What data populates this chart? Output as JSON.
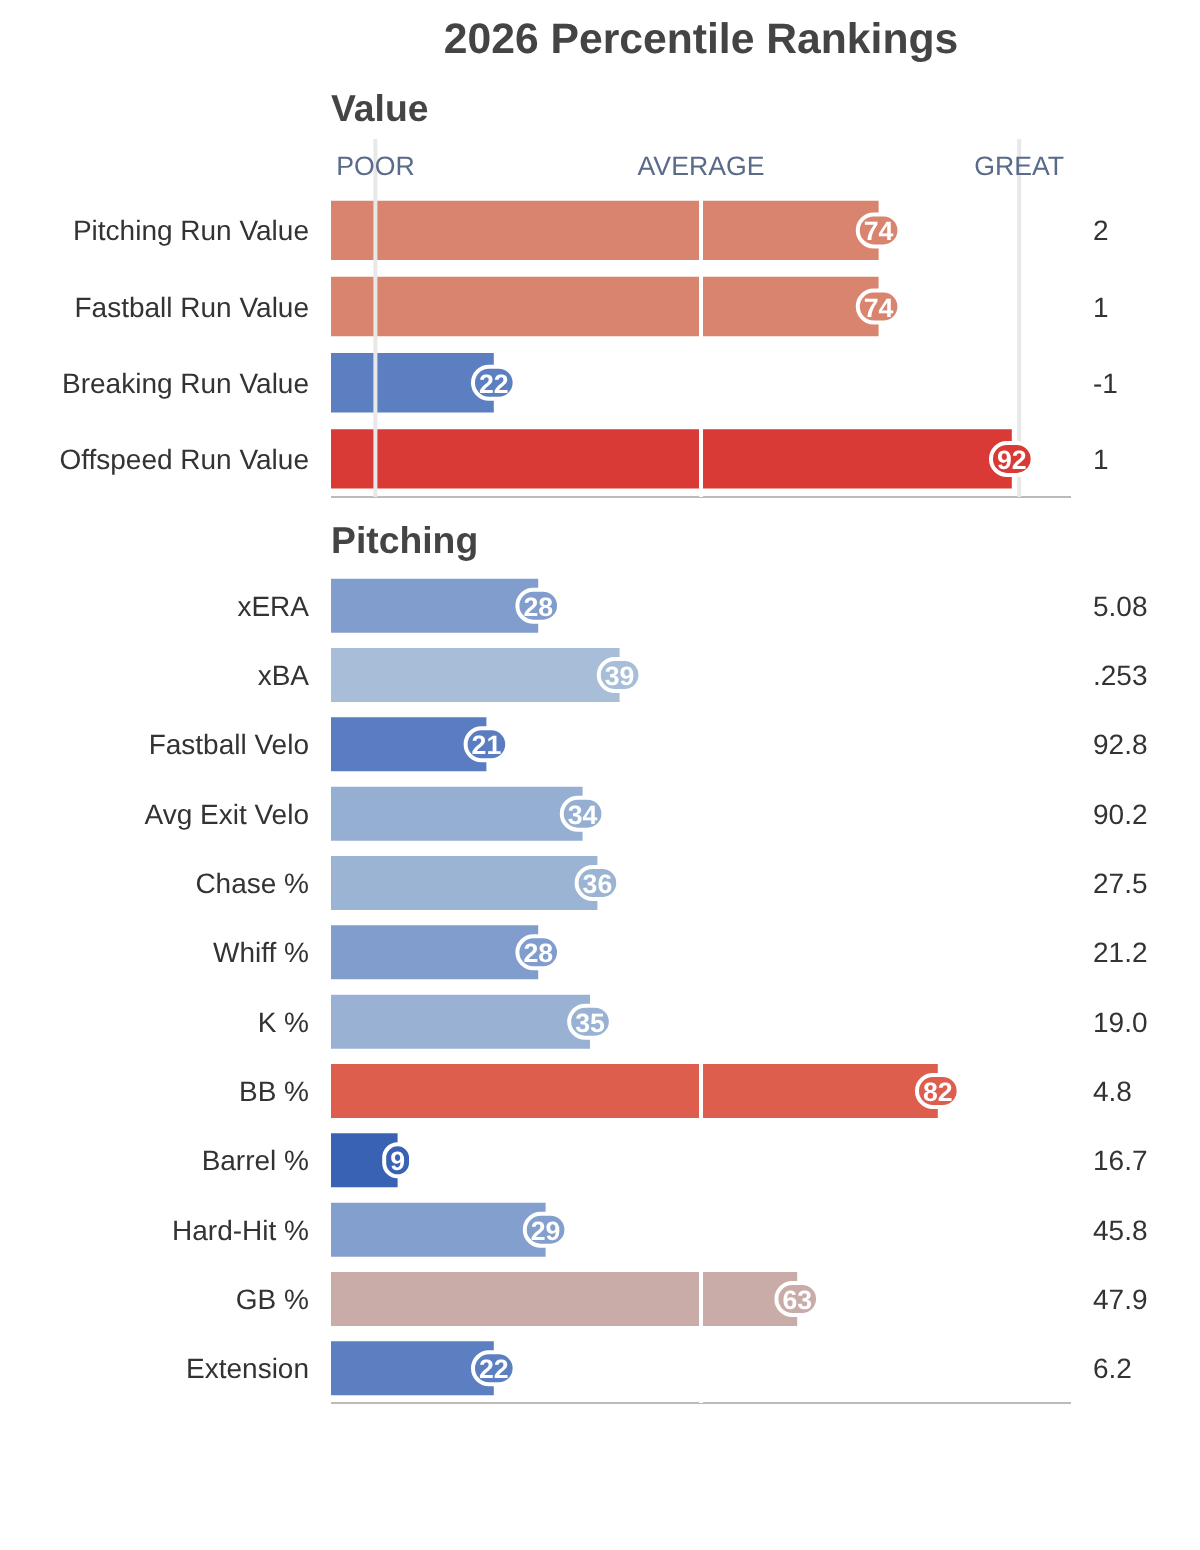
{
  "chart_data": [
    {
      "type": "bar",
      "orientation": "horizontal",
      "title": "2026 Percentile Rankings",
      "subtitle": "Value",
      "categories": [
        "Pitching Run Value",
        "Fastball Run Value",
        "Breaking Run Value",
        "Offspeed Run Value"
      ],
      "values": [
        74,
        74,
        22,
        92
      ],
      "colors": [
        "#d8846f",
        "#d8846f",
        "#5b7fc0",
        "#d93a35"
      ],
      "data_labels": true,
      "xlim": [
        0,
        100
      ],
      "tick_labels": "y",
      "ref_lines": [
        {
          "axis": "x",
          "value": 6,
          "label": "POOR",
          "color": "#e8e8e8"
        },
        {
          "axis": "x",
          "value": 50,
          "label": "AVERAGE",
          "color": "#ffffff"
        },
        {
          "axis": "x",
          "value": 93,
          "label": "GREAT",
          "color": "#e8e8e8"
        }
      ],
      "annotations": [
        "2",
        "1",
        "-1",
        "1"
      ],
      "grid": false
    },
    {
      "type": "bar",
      "orientation": "horizontal",
      "title": "Pitching",
      "categories": [
        "xERA",
        "xBA",
        "Fastball Velo",
        "Avg Exit Velo",
        "Chase %",
        "Whiff %",
        "K %",
        "BB %",
        "Barrel %",
        "Hard-Hit %",
        "GB %",
        "Extension"
      ],
      "values": [
        28,
        39,
        21,
        34,
        36,
        28,
        35,
        82,
        9,
        29,
        63,
        22
      ],
      "colors": [
        "#809dcd",
        "#a8bdd7",
        "#5a7cc0",
        "#94afd2",
        "#9cb4d4",
        "#809dcd",
        "#99b2d3",
        "#dd5e4c",
        "#3a62b4",
        "#839fce",
        "#c9aca8",
        "#5b7fc0"
      ],
      "data_labels": true,
      "xlim": [
        0,
        100
      ],
      "tick_labels": "y",
      "ref_lines": [
        {
          "axis": "x",
          "value": 50,
          "label": null,
          "color": "#ffffff"
        }
      ],
      "annotations": [
        "5.08",
        ".253",
        "92.8",
        "90.2",
        "27.5",
        "21.2",
        "19.0",
        "4.8",
        "16.7",
        "45.8",
        "47.9",
        "6.2"
      ],
      "grid": false
    }
  ]
}
